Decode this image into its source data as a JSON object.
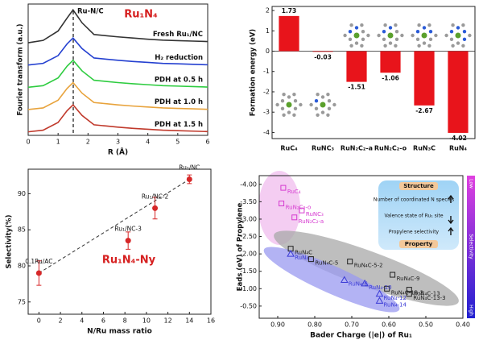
{
  "chart_data": [
    {
      "type": "line",
      "title": "Ru₁N₄",
      "annotation": "Ru-N/C",
      "x_label": "R (Å)",
      "y_label": "Fourier transform (a.u.)",
      "x": [
        0,
        0.5,
        1.0,
        1.3,
        1.5,
        1.8,
        2.2,
        2.6,
        3.0,
        3.5,
        4,
        4.5,
        5,
        5.5,
        6
      ],
      "xlim": [
        0,
        6
      ],
      "xticks": [
        0,
        1,
        2,
        3,
        4,
        5,
        6
      ],
      "ylim": [
        0,
        5.6
      ],
      "series": [
        {
          "name": "Fresh Ru₁/NC",
          "color": "#333333",
          "values": [
            3.95,
            4.05,
            4.45,
            5.0,
            5.35,
            4.8,
            4.3,
            4.25,
            4.2,
            4.15,
            4.1,
            4.06,
            4.04,
            4.02,
            4.0
          ]
        },
        {
          "name": "H₂ reduction",
          "color": "#2440d0",
          "values": [
            3.0,
            3.07,
            3.4,
            3.9,
            4.15,
            3.7,
            3.3,
            3.25,
            3.2,
            3.15,
            3.11,
            3.07,
            3.05,
            3.03,
            3.01
          ]
        },
        {
          "name": "PDH at 0.5 h",
          "color": "#2ecc40",
          "values": [
            2.05,
            2.12,
            2.45,
            2.95,
            3.2,
            2.75,
            2.35,
            2.3,
            2.25,
            2.2,
            2.16,
            2.12,
            2.1,
            2.08,
            2.06
          ]
        },
        {
          "name": "PDH at 1.0 h",
          "color": "#e8a33c",
          "values": [
            1.1,
            1.17,
            1.5,
            2.0,
            2.25,
            1.8,
            1.4,
            1.35,
            1.3,
            1.25,
            1.21,
            1.17,
            1.15,
            1.13,
            1.11
          ]
        },
        {
          "name": "PDH at 1.5 h",
          "color": "#c0392b",
          "values": [
            0.15,
            0.22,
            0.55,
            1.05,
            1.3,
            0.85,
            0.45,
            0.4,
            0.35,
            0.3,
            0.26,
            0.22,
            0.2,
            0.18,
            0.16
          ]
        }
      ]
    },
    {
      "type": "bar",
      "y_label": "Formation energy (eV)",
      "categories": [
        "RuC₄",
        "RuNC₃",
        "RuN₂C₂-a",
        "RuN₂C₂-o",
        "RuN₃C",
        "RuN₄"
      ],
      "values": [
        1.73,
        -0.03,
        -1.51,
        -1.06,
        -2.67,
        -4.02
      ],
      "color": "#e8141b",
      "ylim": [
        -4.3,
        2.2
      ],
      "yticks": [
        2,
        1,
        0,
        -1,
        -2,
        -3,
        -4
      ]
    },
    {
      "type": "scatter",
      "title": "Ru₁N₄-Ny",
      "x_label": "N/Ru mass ratio",
      "y_label": "Selectivity(%)",
      "x": [
        0,
        8.3,
        10.8,
        14
      ],
      "values": [
        79,
        83.5,
        88,
        92
      ],
      "errors": [
        1.7,
        1.2,
        1.5,
        0.6
      ],
      "labels": [
        "0.1Ru/AC",
        "Ru₁/NC-3",
        "Ru₁/NC-2",
        "Ru₁/NC"
      ],
      "color": "#d62728",
      "xlim": [
        -1,
        16
      ],
      "xticks": [
        0,
        2,
        4,
        6,
        8,
        10,
        12,
        14,
        16
      ],
      "ylim": [
        73.3,
        93.4
      ],
      "yticks": [
        75,
        80,
        85,
        90
      ]
    },
    {
      "type": "scatter",
      "x_label": "Bader Charge (|e|) of Ru₁",
      "y_label": "Eads (eV) of Propylene",
      "xlim": [
        0.95,
        0.4
      ],
      "xticks": [
        {
          "value": 0.9,
          "label": "0.90"
        },
        {
          "value": 0.8,
          "label": "0.80"
        },
        {
          "value": 0.7,
          "label": "0.70"
        },
        {
          "value": 0.6,
          "label": "0.60"
        },
        {
          "value": 0.5,
          "label": "0.50"
        },
        {
          "value": 0.4,
          "label": "0.40"
        }
      ],
      "ylim": [
        -0.15,
        -4.25
      ],
      "yticks": [
        {
          "value": -4,
          "label": "-4.00"
        },
        {
          "value": -3.5,
          "label": "-3.50"
        },
        {
          "value": -3,
          "label": "-3.00"
        },
        {
          "value": -2.5,
          "label": "-2.50"
        },
        {
          "value": -2,
          "label": "-2.00"
        },
        {
          "value": -1.5,
          "label": "-1.50"
        },
        {
          "value": -1,
          "label": "-1.00"
        },
        {
          "value": -0.5,
          "label": "-0.50"
        }
      ],
      "series": [
        {
          "color": "#d63bd0",
          "marker": "square",
          "labels": [
            "RuC₄",
            "RuN₂C₂-o",
            "RuNC₃",
            "RuN₂C₂-a"
          ],
          "x": [
            0.885,
            0.89,
            0.835,
            0.855
          ],
          "values": [
            -3.9,
            -3.45,
            -3.25,
            -3.05
          ]
        },
        {
          "color": "#222222",
          "marker": "square",
          "labels": [
            "RuN₄C",
            "RuN₄C-5",
            "RuN₄C-5-2",
            "RuN₄C-9",
            "RuN₄C-13-2",
            "RuN₄C-13",
            "RuN₄C-13-3"
          ],
          "x": [
            0.865,
            0.81,
            0.705,
            0.59,
            0.605,
            0.545,
            0.545
          ],
          "values": [
            -2.15,
            -1.85,
            -1.78,
            -1.4,
            -1.0,
            -0.97,
            -0.85
          ]
        },
        {
          "color": "#3b3bd6",
          "marker": "triangle",
          "labels": [
            "RuN₄",
            "RuN₄-6",
            "RuN₄-10",
            "RuN₄-12",
            "RuN₄-14"
          ],
          "x": [
            0.865,
            0.72,
            0.665,
            0.625,
            0.625
          ],
          "values": [
            -2.0,
            -1.25,
            -1.15,
            -0.85,
            -0.65
          ]
        }
      ],
      "info": {
        "top": "Structure",
        "rows": [
          "Number of coordinated N species",
          "Valence state of Ru₁ site",
          "Propylene selectivity"
        ],
        "bottom": "Property"
      },
      "colorbar": {
        "low": "Low",
        "label": "Selectivity",
        "high": "High"
      }
    }
  ]
}
